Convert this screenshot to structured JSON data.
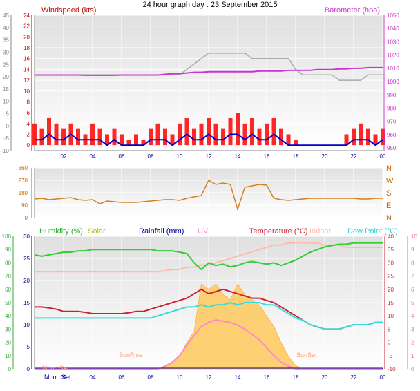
{
  "title": "24 hour graph day : 23 September 2015",
  "colors": {
    "windspeed": "#ff0000",
    "wind_avg": "#0000cc",
    "barometer": "#cc33cc",
    "gust_grey": "#aaaaaa",
    "direction": "#d08020",
    "humidity": "#33cc33",
    "solar": "#cccc00",
    "solar_fill": "#ffcc66",
    "rainfall": "#000099",
    "uv": "#ff88cc",
    "temperature": "#cc2233",
    "indoor": "#ffbbaa",
    "dewpoint": "#33dddd",
    "plot_bg_top": "#e4e4e4",
    "plot_bg_bottom": "#ffffff",
    "grid": "#ffffff",
    "axis_left_grey": "#888888",
    "axis_pink": "#ff66aa"
  },
  "labels": {
    "windspeed": "Windspeed (kts)",
    "barometer": "Barometer (hpa)",
    "humidity": "Humidity (%)",
    "solar": "Solar",
    "rainfall": "Rainfall (mm)",
    "uv": "UV",
    "temperature": "Temperature (°C)",
    "indoor": "Indoor",
    "dewpoint": "Dew Point (°C)",
    "sunrise": "SunRise",
    "sunset": "SunSet",
    "moonset": "Moon Set",
    "moonset2": "Moon Set"
  },
  "chart_data": [
    {
      "type": "line",
      "name": "wind",
      "x_hours": [
        0,
        0.5,
        1,
        1.5,
        2,
        2.5,
        3,
        3.5,
        4,
        4.5,
        5,
        5.5,
        6,
        6.5,
        7,
        7.5,
        8,
        8.5,
        9,
        9.5,
        10,
        10.5,
        11,
        11.5,
        12,
        12.5,
        13,
        13.5,
        14,
        14.5,
        15,
        15.5,
        16,
        16.5,
        17,
        17.5,
        18,
        18.5,
        19,
        19.5,
        20,
        20.5,
        21,
        21.5,
        22,
        22.5,
        23,
        23.5,
        24
      ],
      "x_tick_labels": [
        "02",
        "04",
        "06",
        "08",
        "10",
        "12",
        "14",
        "16",
        "18",
        "20",
        "22",
        "00"
      ],
      "left_axis_outer": {
        "range": [
          -10,
          45
        ],
        "ticks": [
          -10,
          -5,
          0,
          5,
          10,
          15,
          20,
          25,
          30,
          35,
          40,
          45
        ]
      },
      "left_axis_inner": {
        "label": "Windspeed (kts)",
        "range": [
          -1,
          24
        ],
        "ticks": [
          0,
          2,
          4,
          6,
          8,
          10,
          12,
          14,
          16,
          18,
          20,
          22,
          24
        ]
      },
      "right_axis": {
        "label": "Barometer (hpa)",
        "range": [
          948,
          1050
        ],
        "ticks": [
          950,
          960,
          970,
          980,
          990,
          1000,
          1010,
          1020,
          1030,
          1040,
          1050
        ]
      },
      "series": [
        {
          "name": "Windspeed (kts)",
          "values": [
            4,
            3,
            5,
            4,
            3,
            4,
            3,
            2,
            4,
            3,
            2,
            3,
            2,
            1,
            2,
            1,
            3,
            4,
            3,
            2,
            4,
            5,
            3,
            4,
            5,
            4,
            3,
            5,
            6,
            4,
            5,
            3,
            4,
            5,
            3,
            2,
            1,
            0,
            0,
            0,
            0,
            0,
            0,
            2,
            3,
            4,
            3,
            2,
            3
          ]
        },
        {
          "name": "avg",
          "values": [
            1,
            1,
            2,
            1,
            1,
            2,
            1,
            1,
            1,
            1,
            0,
            1,
            0,
            0,
            0,
            0,
            1,
            1,
            1,
            0,
            1,
            2,
            1,
            1,
            2,
            1,
            1,
            2,
            2,
            1,
            2,
            1,
            1,
            2,
            1,
            0,
            0,
            0,
            0,
            0,
            0,
            0,
            0,
            0,
            1,
            1,
            1,
            0,
            1
          ]
        },
        {
          "name": "Barometer (hpa)",
          "values": [
            1005,
            1005,
            1005,
            1005,
            1005,
            1005,
            1005,
            1004.8,
            1004.8,
            1004.8,
            1004.8,
            1004.8,
            1005,
            1005,
            1005,
            1005,
            1005,
            1005,
            1005.5,
            1006,
            1006,
            1006.5,
            1007,
            1007,
            1007.5,
            1007.5,
            1007.5,
            1007.5,
            1007.5,
            1007.5,
            1007.5,
            1008,
            1008,
            1008,
            1008,
            1008.5,
            1008.5,
            1008.5,
            1008.5,
            1009,
            1009,
            1009,
            1009.5,
            1009.5,
            1010,
            1010,
            1010.5,
            1010.5,
            1010.5
          ]
        },
        {
          "name": "gust",
          "values": [
            13,
            13,
            13,
            13,
            13,
            13,
            13,
            13,
            13,
            13,
            13,
            13,
            13,
            13,
            13,
            13,
            13,
            13,
            13,
            13,
            13,
            14,
            15,
            16,
            17,
            17,
            17,
            17,
            17,
            17,
            16,
            16,
            16,
            16,
            16,
            16,
            14,
            13,
            13,
            13,
            13,
            13,
            12,
            12,
            12,
            12,
            13,
            13,
            13
          ]
        }
      ]
    },
    {
      "type": "line",
      "name": "wind direction",
      "x_tick_labels": [
        "02",
        "04",
        "06",
        "08",
        "10",
        "12",
        "14",
        "16",
        "18",
        "20",
        "22",
        "00"
      ],
      "left_axis": {
        "range": [
          0,
          360
        ],
        "ticks": [
          0,
          90,
          180,
          270,
          360
        ]
      },
      "right_axis_labels": [
        "N",
        "W",
        "S",
        "E",
        "N"
      ],
      "series": [
        {
          "name": "direction",
          "values": [
            135,
            140,
            130,
            135,
            140,
            145,
            130,
            125,
            130,
            100,
            120,
            115,
            110,
            110,
            110,
            115,
            120,
            125,
            130,
            130,
            125,
            140,
            150,
            160,
            270,
            240,
            250,
            240,
            60,
            220,
            230,
            240,
            235,
            140,
            130,
            125,
            130,
            135,
            140,
            140,
            140,
            140,
            140,
            140,
            140,
            135,
            135,
            140,
            140
          ]
        }
      ]
    },
    {
      "type": "line",
      "name": "temperature humidity",
      "x_tick_labels": [
        "02",
        "04",
        "06",
        "08",
        "10",
        "12",
        "14",
        "16",
        "18",
        "20",
        "22",
        "00"
      ],
      "left_axis_outer": {
        "label": "Humidity (%)",
        "range": [
          0,
          100
        ],
        "ticks": [
          0,
          10,
          20,
          30,
          40,
          50,
          60,
          70,
          80,
          90,
          100
        ]
      },
      "left_axis_inner": {
        "range": [
          0,
          30
        ],
        "ticks": [
          0,
          5,
          10,
          15,
          20,
          25,
          30
        ]
      },
      "right_axis_inner": {
        "label": "Temperature (°C)",
        "range": [
          -10,
          40
        ],
        "ticks": [
          -10,
          -5,
          0,
          5,
          10,
          15,
          20,
          25,
          30,
          35,
          40
        ]
      },
      "right_axis_outer": {
        "label": "UV",
        "range": [
          0,
          10
        ],
        "ticks": [
          0,
          1,
          2,
          3,
          4,
          5,
          6,
          7,
          8,
          9,
          10
        ]
      },
      "series": [
        {
          "name": "Humidity (%)",
          "values": [
            86,
            85,
            86,
            87,
            88,
            88,
            89,
            89,
            90,
            90,
            90,
            90,
            90,
            90,
            90,
            90,
            90,
            89,
            89,
            89,
            88,
            87,
            80,
            75,
            80,
            78,
            79,
            77,
            78,
            80,
            81,
            80,
            79,
            80,
            78,
            80,
            82,
            85,
            88,
            90,
            92,
            93,
            94,
            94,
            95,
            95,
            95,
            95,
            95
          ]
        },
        {
          "name": "Temperature (°C)",
          "values": [
            14,
            14,
            13.8,
            13.5,
            13,
            13,
            13,
            12.8,
            12.5,
            12.5,
            12.5,
            12.5,
            12.5,
            12.7,
            13,
            13,
            13.5,
            14,
            14.5,
            15,
            15.5,
            16,
            17,
            18,
            17,
            17.5,
            18,
            17.5,
            17,
            16.5,
            16,
            16,
            15.5,
            15,
            14,
            13,
            12,
            11,
            10,
            9.5,
            9,
            9,
            9,
            9.5,
            10,
            10,
            10,
            10.5,
            10.5
          ]
        },
        {
          "name": "Indoor",
          "values": [
            22,
            22,
            22,
            22,
            22,
            22,
            22,
            22,
            22,
            22,
            22,
            22,
            22,
            22,
            22,
            22,
            22,
            22,
            22.2,
            22.5,
            22.5,
            23,
            23,
            23.5,
            23.5,
            24,
            24.5,
            25,
            25.5,
            26,
            26.5,
            27,
            27.5,
            28,
            28,
            28.5,
            28.5,
            28.5,
            28.5,
            28.5,
            28,
            28,
            28,
            27.5,
            27.5,
            27.5,
            27.5,
            27.5,
            27.5
          ]
        },
        {
          "name": "Dew Point (°C)",
          "values": [
            11.5,
            11.5,
            11.5,
            11.5,
            11.5,
            11.5,
            11.5,
            11.5,
            11.5,
            11.5,
            11.5,
            11.5,
            11.5,
            11.5,
            11.5,
            11.5,
            11.5,
            12,
            12.5,
            13,
            13.5,
            14,
            14,
            14.5,
            14,
            14.5,
            14.5,
            15,
            14.5,
            15,
            15,
            15,
            14.5,
            14.5,
            13.5,
            12.5,
            11.5,
            11,
            10,
            9.5,
            9,
            9,
            9,
            9.5,
            10,
            10,
            10,
            10.5,
            10.5
          ]
        },
        {
          "name": "Solar",
          "values": [
            0,
            0,
            0,
            0,
            0,
            0,
            0,
            0,
            0,
            0,
            0,
            0,
            0,
            0,
            0,
            0,
            0,
            5,
            20,
            60,
            120,
            250,
            350,
            800,
            750,
            800,
            700,
            650,
            800,
            700,
            650,
            600,
            500,
            400,
            250,
            120,
            30,
            0,
            0,
            0,
            0,
            0,
            0,
            0,
            0,
            0,
            0,
            0,
            0
          ]
        },
        {
          "name": "UV",
          "values": [
            0,
            0,
            0,
            0,
            0,
            0,
            0,
            0,
            0,
            0,
            0,
            0,
            0,
            0,
            0,
            0,
            0,
            0,
            0.2,
            0.5,
            1,
            1.8,
            2.5,
            3.2,
            3.5,
            3.7,
            3.6,
            3.5,
            3.3,
            3.0,
            2.6,
            2.2,
            1.6,
            1.0,
            0.5,
            0.2,
            0,
            0,
            0,
            0,
            0,
            0,
            0,
            0,
            0,
            0,
            0,
            0,
            0
          ]
        }
      ]
    }
  ]
}
